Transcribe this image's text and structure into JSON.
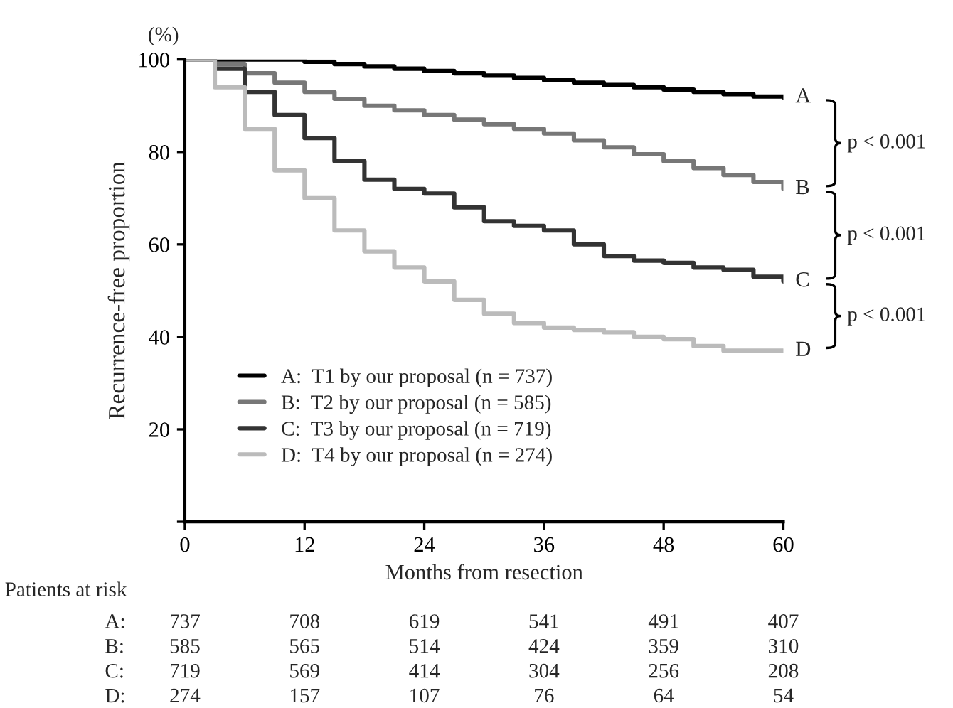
{
  "chart_data": {
    "type": "step",
    "xlabel": "Months from resection",
    "ylabel": "Recurrence-free proportion",
    "xlim": [
      0,
      60
    ],
    "ylim": [
      0,
      100
    ],
    "xticks": [
      0,
      12,
      24,
      36,
      48,
      60
    ],
    "yticks": [
      {
        "value": 0,
        "label": null
      },
      20,
      40,
      60,
      80,
      100
    ],
    "grid": false,
    "legend": "bottom left",
    "line_style": "solid",
    "x": [
      0,
      3,
      6,
      9,
      12,
      15,
      18,
      21,
      24,
      27,
      30,
      33,
      36,
      39,
      42,
      45,
      48,
      51,
      54,
      57,
      60
    ],
    "series": [
      {
        "name": "A:  T1 by our proposal (n = 737)",
        "color": "#000000",
        "values": [
          100,
          100,
          100,
          100,
          99.5,
          99,
          98.5,
          98,
          97.5,
          97,
          96.5,
          96,
          95.5,
          95,
          94.5,
          94,
          93.5,
          93,
          92.5,
          92,
          91.8
        ]
      },
      {
        "name": "B:  T2 by our proposal (n = 585)",
        "color": "#777777",
        "values": [
          100,
          99,
          97,
          95,
          93,
          91.5,
          90,
          89,
          88,
          87,
          86,
          85,
          84,
          82.5,
          81,
          79.5,
          78,
          76.5,
          75,
          73.5,
          72
        ]
      },
      {
        "name": "C:  T3 by our proposal (n = 719)",
        "color": "#333333",
        "values": [
          100,
          98,
          93,
          88,
          83,
          78,
          74,
          72,
          71,
          68,
          65,
          64,
          63,
          60,
          57.5,
          56.5,
          56,
          55,
          54.5,
          53,
          52
        ]
      },
      {
        "name": "D:  T4 by our proposal (n = 274)",
        "color": "#bbbbbb",
        "values": [
          100,
          94,
          85,
          76,
          70,
          63,
          58.5,
          55,
          52,
          48,
          45,
          43,
          42,
          41.5,
          41,
          40,
          39.5,
          38,
          37,
          37,
          37
        ]
      }
    ],
    "annotations": [
      "(%)",
      "A",
      "B",
      "C",
      "D",
      "p < 0.001",
      "p < 0.001",
      "p < 0.001",
      "Patients at risk",
      "A:  737  708  619  541  491  407",
      "B:  585  565  514  424  359  310",
      "C:  719  569  414  304  256  208",
      "D:  274  157  107  76  64  54"
    ]
  }
}
